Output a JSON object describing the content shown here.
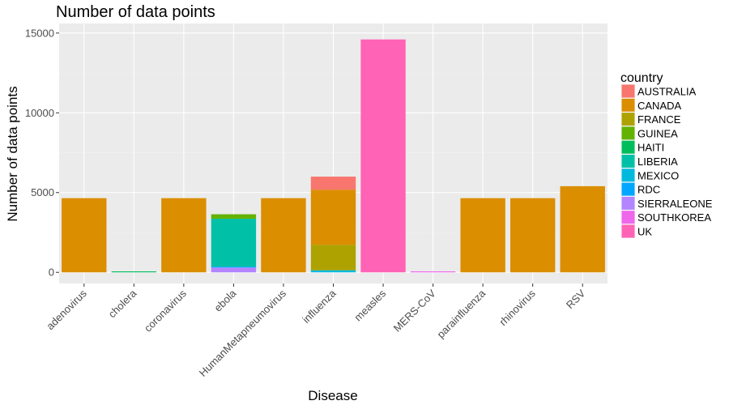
{
  "chart_data": {
    "type": "bar",
    "stacked": true,
    "title": "Number of data points",
    "xlabel": "Disease",
    "ylabel": "Number of data points",
    "ylim": [
      -700,
      15600
    ],
    "yticks": [
      0,
      5000,
      10000,
      15000
    ],
    "categories": [
      "adenovirus",
      "cholera",
      "coronavirus",
      "ebola",
      "HumanMetapneumovirus",
      "influenza",
      "measles",
      "MERS-CoV",
      "parainfluenza",
      "rhinovirus",
      "RSV"
    ],
    "legend_title": "country",
    "legend_position": "right",
    "grid": true,
    "series": [
      {
        "name": "AUSTRALIA",
        "color": "#F8766D",
        "values": [
          0,
          0,
          0,
          0,
          0,
          820,
          0,
          0,
          0,
          0,
          0
        ]
      },
      {
        "name": "CANADA",
        "color": "#DB8E00",
        "values": [
          4650,
          0,
          4650,
          0,
          4650,
          3450,
          0,
          0,
          4650,
          4650,
          5400
        ]
      },
      {
        "name": "FRANCE",
        "color": "#AEA200",
        "values": [
          0,
          0,
          0,
          0,
          0,
          1600,
          0,
          0,
          0,
          0,
          0
        ]
      },
      {
        "name": "GUINEA",
        "color": "#64B200",
        "values": [
          0,
          0,
          0,
          280,
          0,
          0,
          0,
          0,
          0,
          0,
          0
        ]
      },
      {
        "name": "HAITI",
        "color": "#00BD5C",
        "values": [
          0,
          60,
          0,
          0,
          0,
          0,
          0,
          0,
          0,
          0,
          0
        ]
      },
      {
        "name": "LIBERIA",
        "color": "#00C1A7",
        "values": [
          0,
          0,
          0,
          3000,
          0,
          0,
          0,
          0,
          0,
          0,
          0
        ]
      },
      {
        "name": "MEXICO",
        "color": "#00BADE",
        "values": [
          0,
          0,
          0,
          0,
          0,
          130,
          0,
          0,
          0,
          0,
          0
        ]
      },
      {
        "name": "RDC",
        "color": "#00A6FF",
        "values": [
          0,
          0,
          0,
          60,
          0,
          0,
          0,
          0,
          0,
          0,
          0
        ]
      },
      {
        "name": "SIERRALEONE",
        "color": "#B385FF",
        "values": [
          0,
          0,
          0,
          300,
          0,
          0,
          0,
          0,
          0,
          0,
          0
        ]
      },
      {
        "name": "SOUTHKOREA",
        "color": "#EF67EB",
        "values": [
          0,
          0,
          0,
          0,
          0,
          0,
          0,
          60,
          0,
          0,
          0
        ]
      },
      {
        "name": "UK",
        "color": "#FF63B6",
        "values": [
          0,
          0,
          0,
          0,
          0,
          0,
          14600,
          0,
          0,
          0,
          0
        ]
      }
    ]
  }
}
